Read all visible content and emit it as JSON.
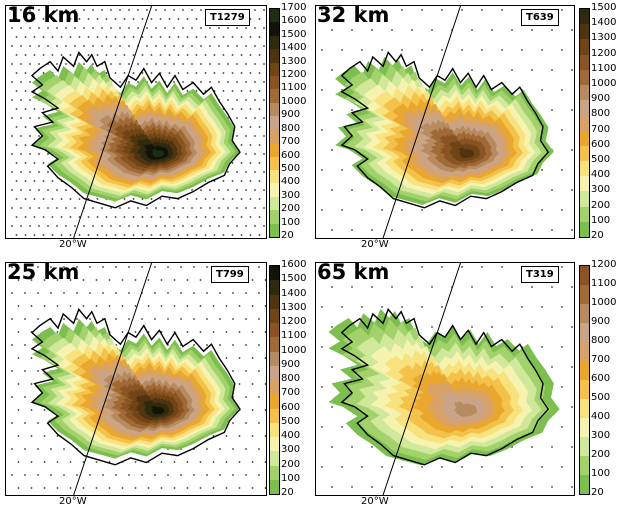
{
  "panels": [
    {
      "id": "p16",
      "resolution": "16 km",
      "truncation": "T1279",
      "lon_label": "20°W",
      "ticks": [
        20,
        100,
        200,
        300,
        400,
        500,
        600,
        700,
        800,
        900,
        1000,
        1100,
        1200,
        1300,
        1400,
        1500,
        1600,
        1700
      ],
      "peak_fraction": 1.0,
      "dots": "dense"
    },
    {
      "id": "p32",
      "resolution": "32 km",
      "truncation": "T639",
      "lon_label": "20°W",
      "ticks": [
        20,
        100,
        200,
        300,
        400,
        500,
        600,
        700,
        800,
        900,
        1000,
        1100,
        1200,
        1300,
        1400,
        1500
      ],
      "peak_fraction": 0.95,
      "dots": "sparse"
    },
    {
      "id": "p25",
      "resolution": "25 km",
      "truncation": "T799",
      "lon_label": "20°W",
      "ticks": [
        20,
        100,
        200,
        300,
        400,
        500,
        600,
        700,
        800,
        900,
        1000,
        1100,
        1200,
        1300,
        1400,
        1500,
        1600
      ],
      "peak_fraction": 1.0,
      "dots": "medium"
    },
    {
      "id": "p65",
      "resolution": "65 km",
      "truncation": "T319",
      "lon_label": "20°W",
      "ticks": [
        20,
        100,
        200,
        300,
        400,
        500,
        600,
        700,
        800,
        900,
        1000,
        1100,
        1200
      ],
      "peak_fraction": 0.8,
      "dots": "sparse"
    }
  ],
  "palette": [
    "#7cbf4e",
    "#a3d26d",
    "#cfe89a",
    "#f6f2b0",
    "#f8e27e",
    "#f4c24a",
    "#e9a82d",
    "#d8a266",
    "#c9a486",
    "#b78a5f",
    "#a06a36",
    "#8a5422",
    "#6f4515",
    "#503410",
    "#2f2a0e",
    "#12140a",
    "#1b2f12",
    "#3a3a8a"
  ],
  "colors": {
    "border": "#000000",
    "land_line": "#000000"
  }
}
